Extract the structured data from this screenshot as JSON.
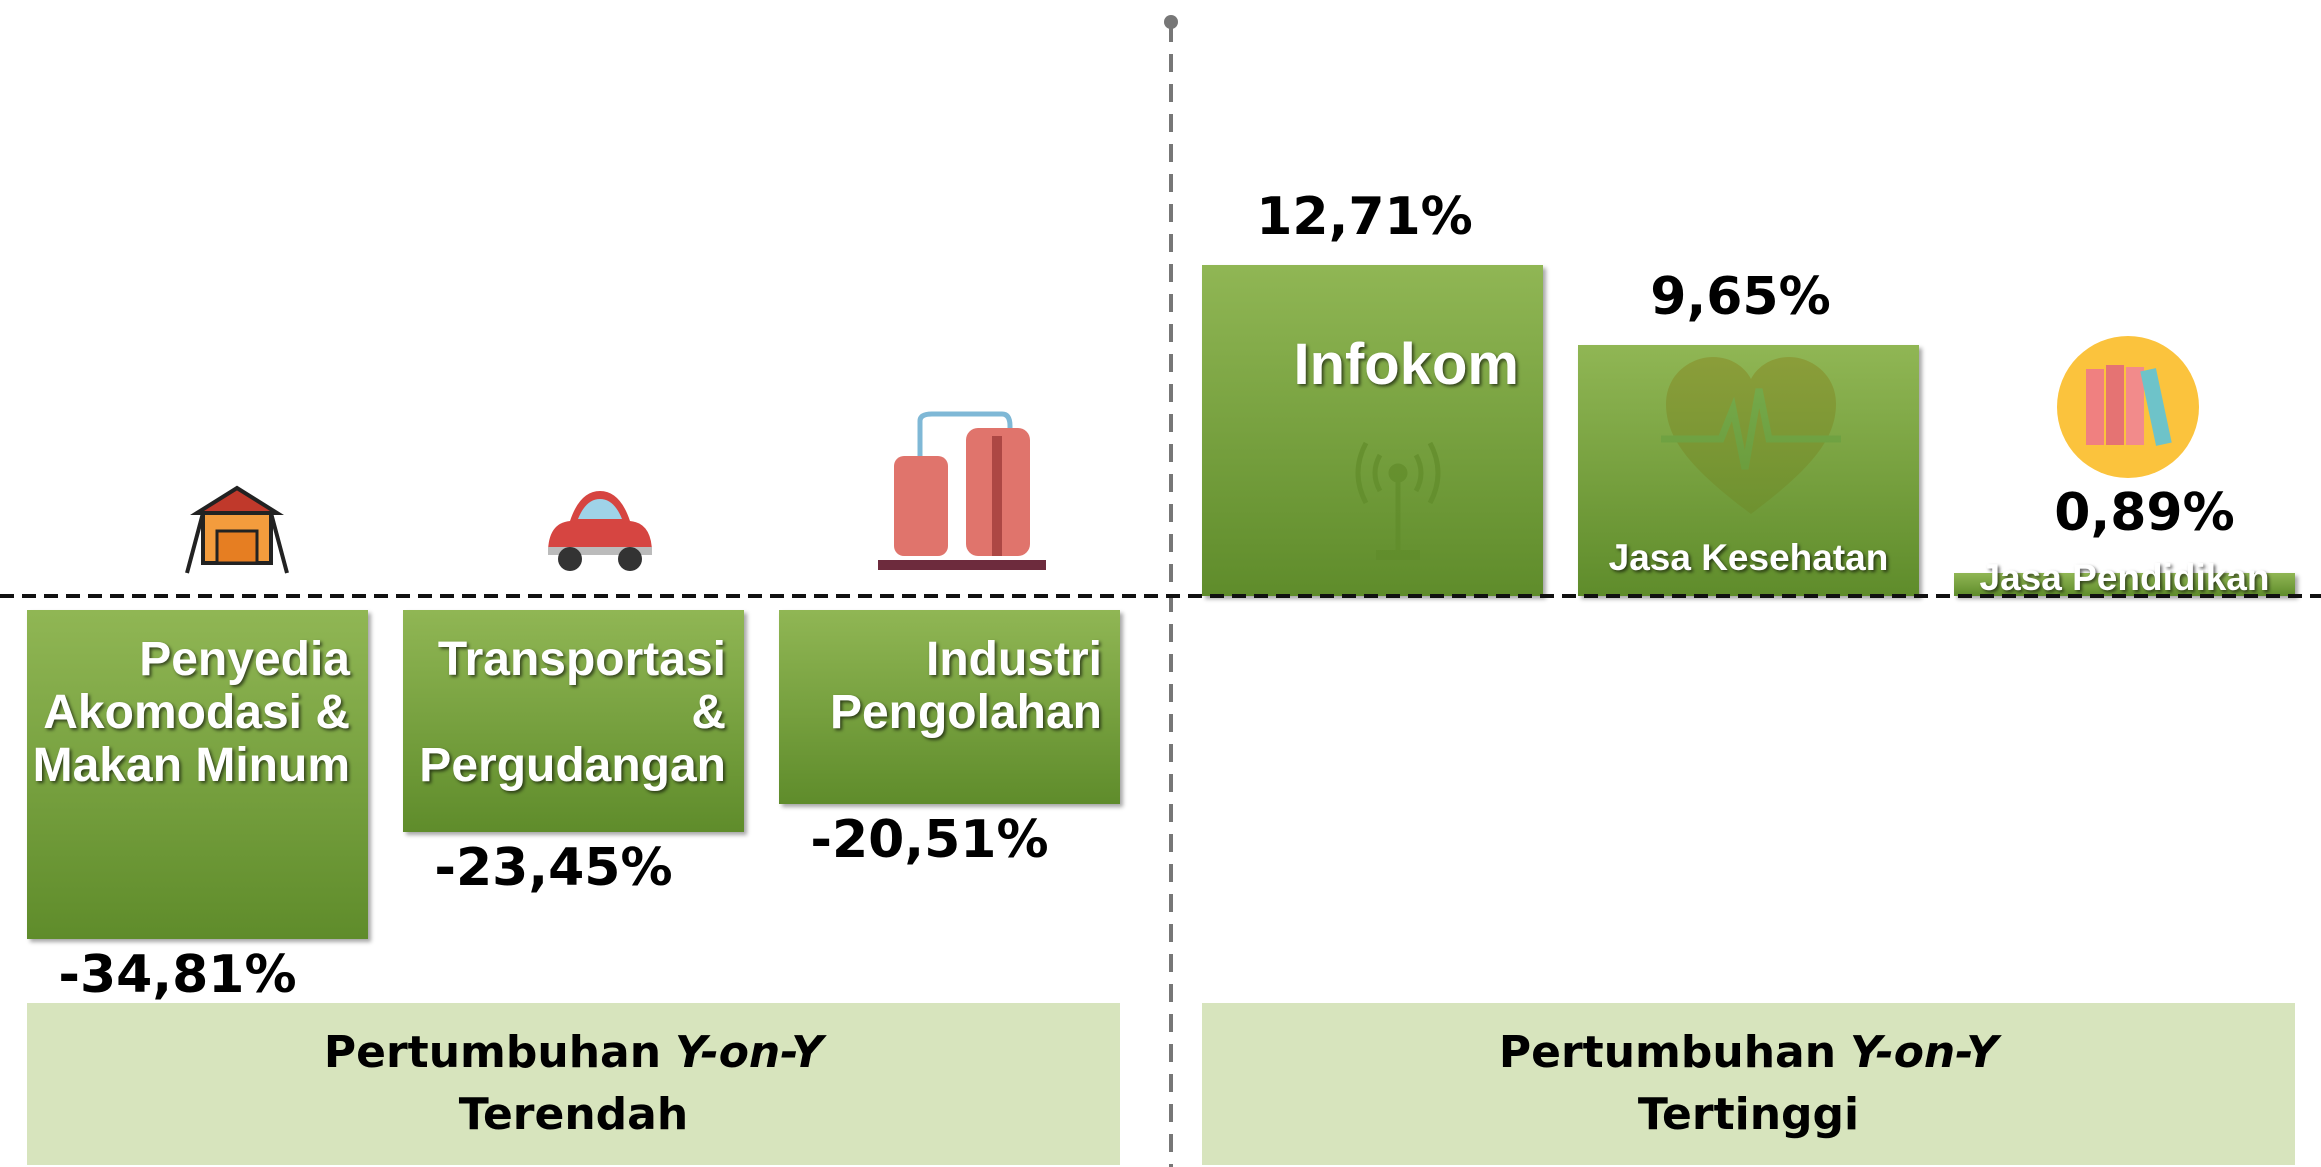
{
  "chart_data": [
    {
      "type": "bar",
      "color": "#7fab3a",
      "categories": [
        "Penyedia Akomodasi & Makan Minum",
        "Transportasi & Pergudangan",
        "Industri Pengolahan"
      ],
      "values": [
        -34.81,
        -23.45,
        -20.51
      ],
      "value_labels": [
        "-34,81%",
        "-23,45%",
        "-20,51%"
      ],
      "ylim": [
        -40,
        0
      ],
      "footer": {
        "text": "Pertumbuhan",
        "emphasis": "Y-on-Y",
        "line2": "Terendah"
      }
    },
    {
      "type": "bar",
      "color": "#7fab3a",
      "categories": [
        "Infokom",
        "Jasa Kesehatan",
        "Jasa Pendidikan"
      ],
      "values": [
        12.71,
        9.65,
        0.89
      ],
      "value_labels": [
        "12,71%",
        "9,65%",
        "0,89%"
      ],
      "ylim": [
        0,
        20
      ],
      "footer": {
        "text": "Pertumbuhan",
        "emphasis": "Y-on-Y",
        "line2": "Tertinggi"
      }
    }
  ]
}
